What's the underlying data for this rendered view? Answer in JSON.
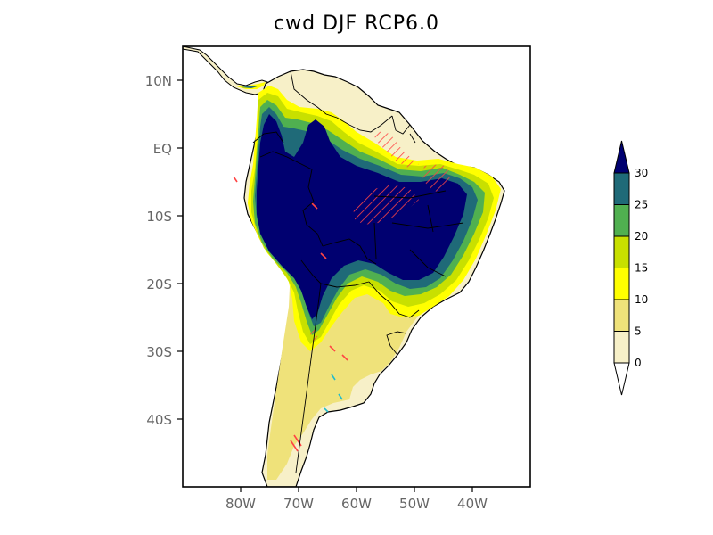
{
  "title": "cwd DJF RCP6.0",
  "axes": {
    "y_ticks": [
      {
        "label": "10N",
        "lat": 10
      },
      {
        "label": "EQ",
        "lat": 0
      },
      {
        "label": "10S",
        "lat": -10
      },
      {
        "label": "20S",
        "lat": -20
      },
      {
        "label": "30S",
        "lat": -30
      },
      {
        "label": "40S",
        "lat": -40
      }
    ],
    "x_ticks": [
      {
        "label": "80W",
        "lon": -80
      },
      {
        "label": "70W",
        "lon": -70
      },
      {
        "label": "60W",
        "lon": -60
      },
      {
        "label": "50W",
        "lon": -50
      },
      {
        "label": "40W",
        "lon": -40
      }
    ],
    "lon_range": [
      -90,
      -30
    ],
    "lat_range": [
      -50,
      15
    ]
  },
  "colorbar": {
    "labels": [
      "0",
      "5",
      "10",
      "15",
      "20",
      "25",
      "30"
    ],
    "colors": [
      "#f7f0c8",
      "#efe27a",
      "#ffff00",
      "#c8e000",
      "#50b050",
      "#1f6a78",
      "#000070"
    ]
  },
  "colors": {
    "land_base": "#f7f0c8",
    "dark_navy": "#000070",
    "hatch": "#ff4444",
    "hatch_alt": "#22bbcc"
  }
}
